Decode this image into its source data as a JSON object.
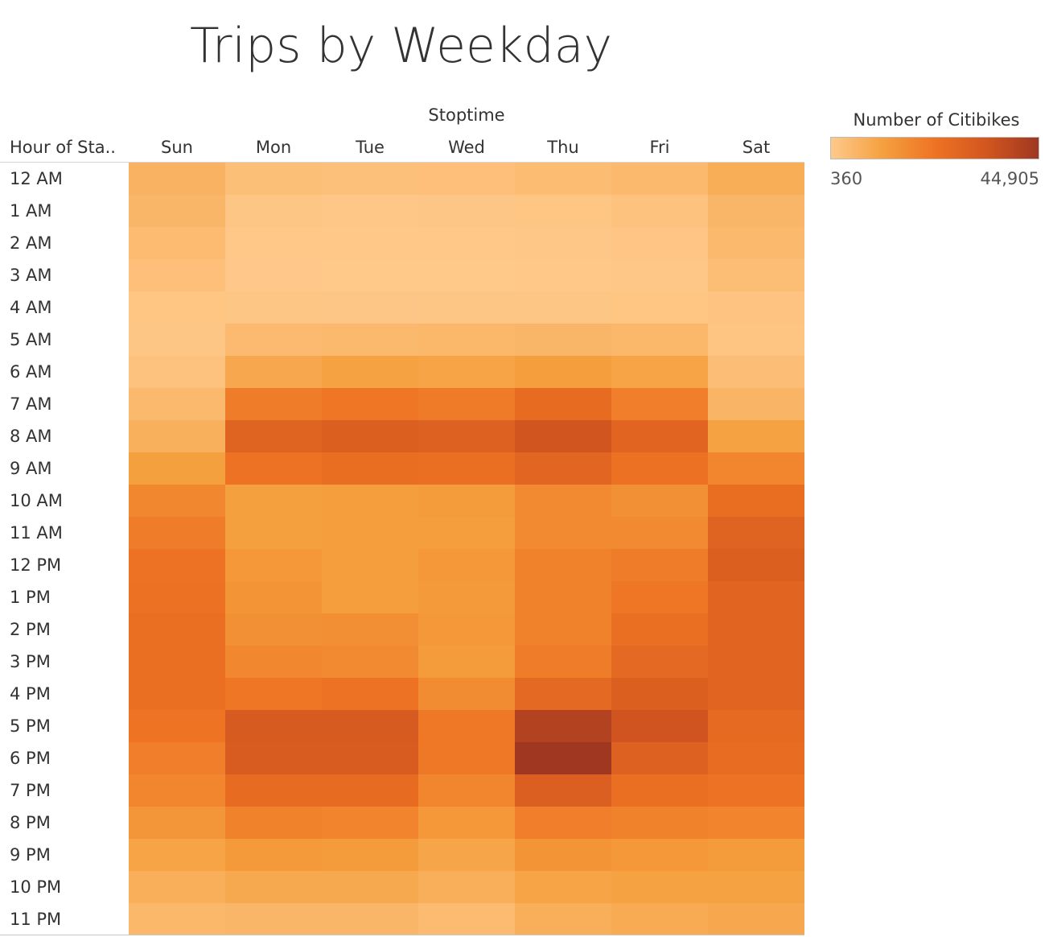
{
  "chart_data": {
    "type": "heatmap",
    "title": "Trips by Weekday",
    "column_header": "Stoptime",
    "row_header": "Hour of Sta..",
    "columns": [
      "Sun",
      "Mon",
      "Tue",
      "Wed",
      "Thu",
      "Fri",
      "Sat"
    ],
    "rows": [
      "12 AM",
      "1 AM",
      "2 AM",
      "3 AM",
      "4 AM",
      "5 AM",
      "6 AM",
      "7 AM",
      "8 AM",
      "9 AM",
      "10 AM",
      "11 AM",
      "12 PM",
      "1 PM",
      "2 PM",
      "3 PM",
      "4 PM",
      "5 PM",
      "6 PM",
      "7 PM",
      "8 PM",
      "9 PM",
      "10 PM",
      "11 PM"
    ],
    "values": [
      [
        6500,
        3200,
        2800,
        3000,
        4000,
        4800,
        8000
      ],
      [
        5500,
        1200,
        1000,
        1100,
        1500,
        2200,
        5500
      ],
      [
        4200,
        700,
        600,
        650,
        900,
        1400,
        4600
      ],
      [
        3000,
        500,
        450,
        480,
        600,
        900,
        3600
      ],
      [
        1500,
        1200,
        1100,
        1200,
        1300,
        1500,
        2000
      ],
      [
        1300,
        4500,
        4800,
        5000,
        5500,
        5200,
        1800
      ],
      [
        2300,
        9500,
        11000,
        10500,
        12000,
        10500,
        3500
      ],
      [
        4800,
        20500,
        22000,
        21000,
        25500,
        20000,
        6000
      ],
      [
        7200,
        28500,
        30000,
        29500,
        34000,
        28000,
        11000
      ],
      [
        11500,
        23000,
        24500,
        24000,
        27500,
        23500,
        18000
      ],
      [
        17500,
        11500,
        12000,
        12500,
        17000,
        15500,
        24500
      ],
      [
        20500,
        11500,
        12000,
        12000,
        17000,
        17000,
        28500
      ],
      [
        23000,
        13500,
        12000,
        13500,
        19000,
        20500,
        30000
      ],
      [
        23500,
        14500,
        12000,
        13000,
        19000,
        22000,
        28000
      ],
      [
        24000,
        15500,
        16000,
        13500,
        19000,
        24000,
        28000
      ],
      [
        24000,
        17500,
        17000,
        12500,
        20500,
        26500,
        28000
      ],
      [
        24000,
        22000,
        23000,
        16500,
        26500,
        30000,
        28000
      ],
      [
        22500,
        32000,
        32000,
        21500,
        40500,
        34500,
        26000
      ],
      [
        20000,
        31500,
        31500,
        21500,
        44905,
        29500,
        25000
      ],
      [
        18000,
        25500,
        25500,
        18000,
        30500,
        24000,
        23000
      ],
      [
        14000,
        19000,
        18500,
        13500,
        20000,
        19000,
        18500
      ],
      [
        10500,
        13000,
        12500,
        10000,
        14500,
        13500,
        12500
      ],
      [
        7500,
        9000,
        9000,
        7500,
        10500,
        11000,
        11000
      ],
      [
        5000,
        5500,
        5500,
        4200,
        7500,
        8500,
        9500
      ]
    ],
    "color_scale": {
      "title": "Number of Citibikes",
      "min": 360,
      "max": 44905,
      "min_label": "360",
      "max_label": "44,905",
      "colors": [
        "#ffc98b",
        "#f5a03f",
        "#ee7323",
        "#d2561f",
        "#9f3721"
      ]
    }
  }
}
